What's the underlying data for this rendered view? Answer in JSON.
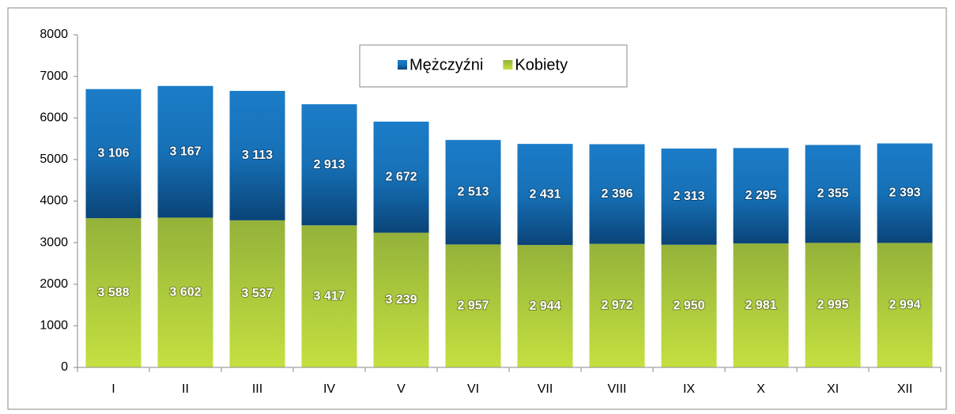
{
  "chart_data": {
    "type": "stacked_bar",
    "categories": [
      "I",
      "II",
      "III",
      "IV",
      "V",
      "VI",
      "VII",
      "VIII",
      "IX",
      "X",
      "XI",
      "XII"
    ],
    "series": [
      {
        "name": "Mężczyźni",
        "color": "#1a78c2",
        "values": [
          3106,
          3167,
          3113,
          2913,
          2672,
          2513,
          2431,
          2396,
          2313,
          2295,
          2355,
          2393
        ],
        "value_labels": [
          "3 106",
          "3 167",
          "3 113",
          "2 913",
          "2 672",
          "2 513",
          "2 431",
          "2 396",
          "2 313",
          "2 295",
          "2 355",
          "2 393"
        ]
      },
      {
        "name": "Kobiety",
        "color": "#b0cc3c",
        "values": [
          3588,
          3602,
          3537,
          3417,
          3239,
          2957,
          2944,
          2972,
          2950,
          2981,
          2995,
          2994
        ],
        "value_labels": [
          "3 588",
          "3 602",
          "3 537",
          "3 417",
          "3 239",
          "2 957",
          "2 944",
          "2 972",
          "2 950",
          "2 981",
          "2 995",
          "2 994"
        ]
      }
    ],
    "ylim": [
      0,
      8000
    ],
    "yticks": [
      0,
      1000,
      2000,
      3000,
      4000,
      5000,
      6000,
      7000,
      8000
    ],
    "grid": false,
    "legend": "top"
  }
}
